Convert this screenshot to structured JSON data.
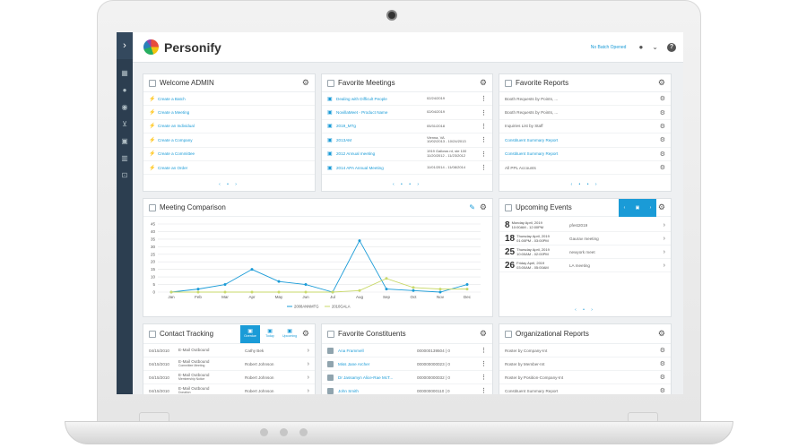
{
  "app": {
    "brand": "Personify",
    "batch_status": "No Batch Opened"
  },
  "sidebar": {
    "icons": [
      "chevron-right-icon",
      "grid-icon",
      "person-icon",
      "group-icon",
      "cart-icon",
      "calendar-icon",
      "chart-icon",
      "export-icon"
    ]
  },
  "welcome": {
    "title": "Welcome ADMIN",
    "items": [
      "Create a Batch",
      "Create a Meeting",
      "Create an Individual",
      "Create a Company",
      "Create a Committee",
      "Create an Order"
    ]
  },
  "meetings": {
    "title": "Favorite Meetings",
    "items": [
      {
        "name": "Dealing with Difficult People",
        "date": "02/24/2019"
      },
      {
        "name": "NovillaMeet - Product Name",
        "date": "02/04/2019"
      },
      {
        "name": "2019_MTg",
        "date": "05/31/2018"
      },
      {
        "name": "2013AM",
        "date": "Vienna, VA\n10/02/2013 - 10/24/2013"
      },
      {
        "name": "2012 Annual meeting",
        "date": "1919 Gallows rd, ste 100\n11/20/2012 - 11/23/2012"
      },
      {
        "name": "2014 APA Annual Meeting",
        "date": "11/01/2014 - 11/08/2014"
      }
    ]
  },
  "reports": {
    "title": "Favorite Reports",
    "items": [
      "Booth Requests by Points, ...",
      "Booth Requests by Points, ...",
      "Inquiries List by Staff",
      "Constituent Summary Report",
      "Constituent Summary Report",
      "All PPL Accounts"
    ]
  },
  "comparison": {
    "title": "Meeting Comparison"
  },
  "chart_data": {
    "type": "line",
    "categories": [
      "Jan",
      "Feb",
      "Mar",
      "Apr",
      "May",
      "Jun",
      "Jul",
      "Aug",
      "Sep",
      "Oct",
      "Nov",
      "Dec"
    ],
    "ylim": [
      0,
      45
    ],
    "yticks": [
      0,
      5,
      10,
      15,
      20,
      25,
      30,
      35,
      40,
      45
    ],
    "grid": true,
    "legend": "bottom",
    "series": [
      {
        "name": "2008ANNMTG",
        "color": "#1a9bd7",
        "values": [
          0,
          2,
          5,
          15,
          7,
          5,
          0,
          34,
          2,
          1,
          0,
          5
        ]
      },
      {
        "name": "2010GALA",
        "color": "#c9d96a",
        "values": [
          0,
          0,
          0,
          0,
          0,
          0,
          0,
          1,
          9,
          3,
          2,
          2
        ]
      }
    ]
  },
  "events": {
    "title": "Upcoming Events",
    "nav_label": "Next Month - Next Year",
    "items": [
      {
        "day": "8",
        "line1": "Monday April, 2019",
        "line2": "10:00AM - 12:00PM",
        "name": "pfest2019"
      },
      {
        "day": "18",
        "line1": "Thursday April, 2019",
        "line2": "01:00PM - 03:00PM",
        "name": "Gaurav meeting"
      },
      {
        "day": "25",
        "line1": "Thursday April, 2019",
        "line2": "10:00AM - 02:00PM",
        "name": "newyork meet"
      },
      {
        "day": "26",
        "line1": "Friday April, 2019",
        "line2": "03:00AM - 05:00AM",
        "name": "LA meeting"
      }
    ]
  },
  "contact": {
    "title": "Contact Tracking",
    "tabs": [
      "Overdue",
      "Today",
      "Upcoming"
    ],
    "items": [
      {
        "date": "04/15/2010",
        "type": "E-Mail Outbound",
        "sub": "",
        "name": "Cathy Bek"
      },
      {
        "date": "04/15/2010",
        "type": "E-Mail Outbound",
        "sub": "Committee Meeting",
        "name": "Robert Johnson"
      },
      {
        "date": "04/15/2010",
        "type": "E-Mail Outbound",
        "sub": "Membership Notice",
        "name": "Robert Johnson"
      },
      {
        "date": "04/15/2010",
        "type": "E-Mail Outbound",
        "sub": "Donation",
        "name": "Robert Johnson"
      },
      {
        "date": "04/15/2010",
        "type": "E-Mail Outbound",
        "sub": "",
        "name": "Andrew Z Wilson"
      }
    ]
  },
  "constituents": {
    "title": "Favorite Constituents",
    "items": [
      {
        "name": "Ana Frammell",
        "id": "000000139504 | 0"
      },
      {
        "name": "Miss Jane Archer",
        "id": "000000000023 | 0"
      },
      {
        "name": "Dr Jassamyn Alice-Rae McT...",
        "id": "000000000032 | 0"
      },
      {
        "name": "John Smith",
        "id": "000000000110 | 0"
      }
    ]
  },
  "org_reports": {
    "title": "Organizational Reports",
    "items": [
      "Roster by Company-Int",
      "Roster by Member-Int",
      "Roster by Position-Company-Int",
      "Constituent Summary Report"
    ]
  }
}
